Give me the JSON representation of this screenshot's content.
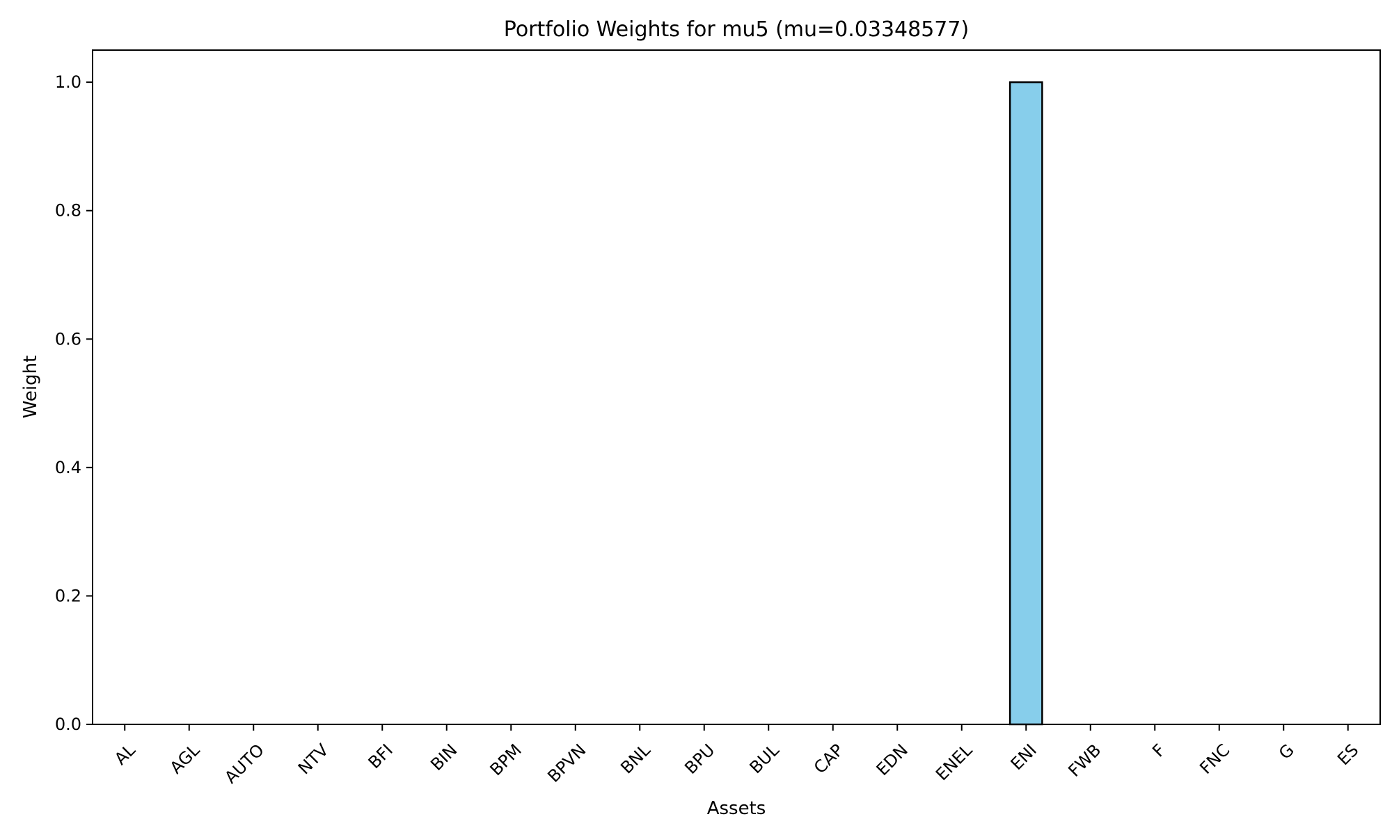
{
  "chart_data": {
    "type": "bar",
    "title": "Portfolio Weights for mu5 (mu=0.03348577)",
    "xlabel": "Assets",
    "ylabel": "Weight",
    "categories": [
      "AL",
      "AGL",
      "AUTO",
      "NTV",
      "BFI",
      "BIN",
      "BPM",
      "BPVN",
      "BNL",
      "BPU",
      "BUL",
      "CAP",
      "EDN",
      "ENEL",
      "ENI",
      "FWB",
      "F",
      "FNC",
      "G",
      "ES"
    ],
    "values": [
      0,
      0,
      0,
      0,
      0,
      0,
      0,
      0,
      0,
      0,
      0,
      0,
      0,
      0,
      1,
      0,
      0,
      0,
      0,
      0
    ],
    "ylim": [
      0,
      1.05
    ],
    "yticks": [
      0.0,
      0.2,
      0.4,
      0.6,
      0.8,
      1.0
    ],
    "ytick_labels": [
      "0.0",
      "0.2",
      "0.4",
      "0.6",
      "0.8",
      "1.0"
    ],
    "bar_color": "#87CEEB",
    "bar_edge_color": "#000000",
    "grid": false,
    "legend": "none"
  }
}
